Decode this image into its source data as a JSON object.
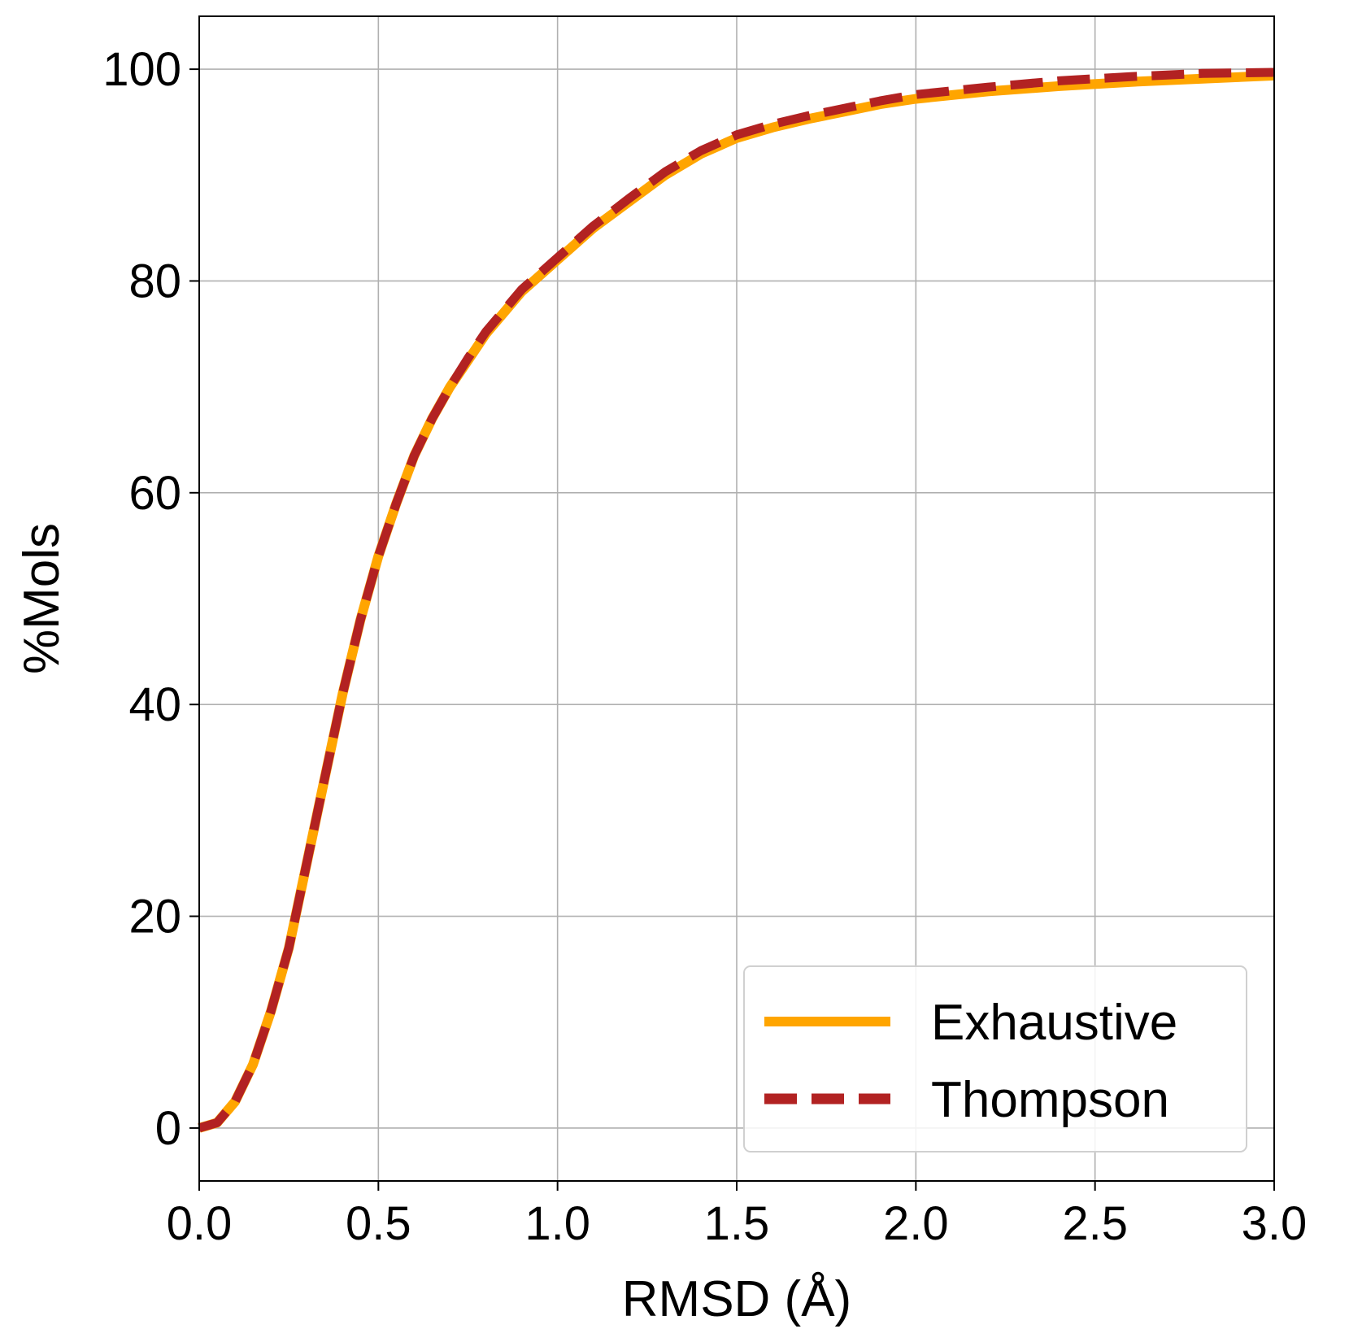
{
  "chart_data": {
    "type": "line",
    "title": "",
    "xlabel": "RMSD (Å)",
    "ylabel": "%Mols",
    "xlim": [
      0.0,
      3.0
    ],
    "ylim": [
      -5,
      105
    ],
    "xticks": [
      0.0,
      0.5,
      1.0,
      1.5,
      2.0,
      2.5,
      3.0
    ],
    "xtick_labels": [
      "0.0",
      "0.5",
      "1.0",
      "1.5",
      "2.0",
      "2.5",
      "3.0"
    ],
    "yticks": [
      0,
      20,
      40,
      60,
      80,
      100
    ],
    "ytick_labels": [
      "0",
      "20",
      "40",
      "60",
      "80",
      "100"
    ],
    "grid": true,
    "legend_position": "lower-right",
    "series": [
      {
        "name": "Exhaustive",
        "color": "#FFA500",
        "style": "solid",
        "x": [
          0.0,
          0.05,
          0.1,
          0.15,
          0.2,
          0.25,
          0.3,
          0.35,
          0.4,
          0.45,
          0.5,
          0.55,
          0.6,
          0.65,
          0.7,
          0.75,
          0.8,
          0.9,
          1.0,
          1.1,
          1.2,
          1.3,
          1.4,
          1.5,
          1.6,
          1.7,
          1.8,
          1.9,
          2.0,
          2.2,
          2.4,
          2.6,
          2.8,
          3.0
        ],
        "y": [
          0,
          0.5,
          2.5,
          6,
          11,
          17,
          25,
          33,
          41,
          48,
          54,
          59,
          63.5,
          67,
          70,
          72.5,
          75,
          79,
          82,
          85,
          87.5,
          90,
          92,
          93.5,
          94.5,
          95.3,
          96,
          96.7,
          97.2,
          97.9,
          98.4,
          98.8,
          99.1,
          99.4
        ]
      },
      {
        "name": "Thompson",
        "color": "#B22222",
        "style": "dashed",
        "x": [
          0.0,
          0.05,
          0.1,
          0.15,
          0.2,
          0.25,
          0.3,
          0.35,
          0.4,
          0.45,
          0.5,
          0.55,
          0.6,
          0.65,
          0.7,
          0.75,
          0.8,
          0.9,
          1.0,
          1.1,
          1.2,
          1.3,
          1.4,
          1.5,
          1.6,
          1.7,
          1.8,
          1.9,
          2.0,
          2.2,
          2.4,
          2.6,
          2.8,
          3.0
        ],
        "y": [
          0,
          0.5,
          2.5,
          6,
          11,
          17,
          25,
          33,
          41,
          48,
          54,
          59,
          63.5,
          67,
          70,
          72.7,
          75.2,
          79.2,
          82.2,
          85.2,
          87.8,
          90.3,
          92.3,
          93.8,
          94.8,
          95.6,
          96.3,
          97,
          97.6,
          98.3,
          98.9,
          99.3,
          99.6,
          99.7
        ]
      }
    ]
  }
}
